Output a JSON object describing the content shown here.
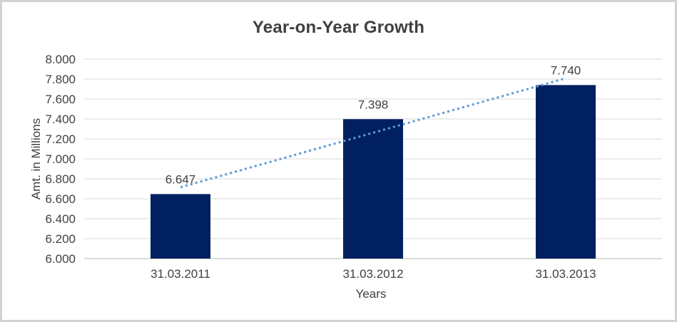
{
  "chart_data": {
    "type": "bar",
    "title": "Year-on-Year Growth",
    "xlabel": "Years",
    "ylabel": "Amt. in Millions",
    "categories": [
      "31.03.2011",
      "31.03.2012",
      "31.03.2013"
    ],
    "series": [
      {
        "values": [
          6647,
          7398,
          7740
        ],
        "labels": [
          "6.647",
          "7.398",
          "7.740"
        ]
      }
    ],
    "ylim": [
      6000,
      8000
    ],
    "ytick_step": 200,
    "yticks": [
      {
        "value": 8000,
        "label": "8.000"
      },
      {
        "value": 7800,
        "label": "7.800"
      },
      {
        "value": 7600,
        "label": "7.600"
      },
      {
        "value": 7400,
        "label": "7.400"
      },
      {
        "value": 7200,
        "label": "7.200"
      },
      {
        "value": 7000,
        "label": "7.000"
      },
      {
        "value": 6800,
        "label": "6.800"
      },
      {
        "value": 6600,
        "label": "6.600"
      },
      {
        "value": 6400,
        "label": "6.400"
      },
      {
        "value": 6200,
        "label": "6.200"
      },
      {
        "value": 6000,
        "label": "6.000"
      }
    ],
    "grid": true,
    "legend": false,
    "data_labels": true,
    "trendline": {
      "type": "linear",
      "style": "dotted"
    },
    "colors": {
      "bar": "#002060",
      "trendline": "#5B9BD5",
      "gridline": "#D9D9D9",
      "axis_line": "#C6C6C6",
      "text": "#404040",
      "title": "#3F3F3F",
      "frame_border": "#D2D2D2",
      "background": "#FFFFFF"
    }
  }
}
